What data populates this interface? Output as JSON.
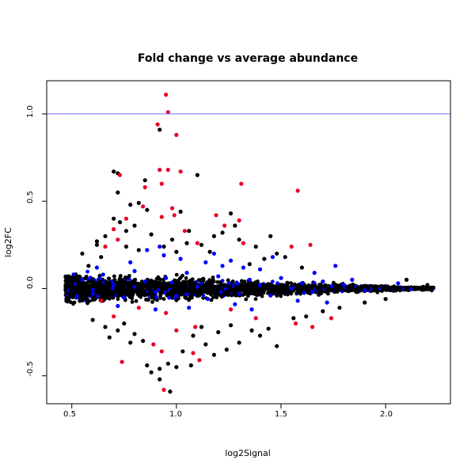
{
  "chart_data": {
    "type": "scatter",
    "title": "Fold change vs average abundance",
    "xlabel": "log2Signal",
    "ylabel": "log2FC",
    "xlim": [
      0.38,
      2.31
    ],
    "ylim": [
      -0.66,
      1.19
    ],
    "xticks": [
      "0.5",
      "1.0",
      "1.5",
      "2.0"
    ],
    "yticks": [
      "-0.5",
      "0.0",
      "0.5",
      "1.0"
    ],
    "hline": {
      "y": 1.0,
      "color": "#7070ff"
    },
    "grid": false,
    "legend": "none",
    "series": [
      {
        "color": "#000000",
        "points": [
          [
            0.7,
            0.67
          ],
          [
            0.72,
            0.66
          ],
          [
            0.85,
            0.62
          ],
          [
            0.92,
            0.91
          ],
          [
            1.1,
            0.65
          ],
          [
            0.72,
            0.55
          ],
          [
            0.78,
            0.48
          ],
          [
            0.82,
            0.49
          ],
          [
            0.7,
            0.4
          ],
          [
            0.73,
            0.38
          ],
          [
            0.86,
            0.45
          ],
          [
            1.02,
            0.44
          ],
          [
            1.26,
            0.43
          ],
          [
            1.28,
            0.36
          ],
          [
            1.22,
            0.32
          ],
          [
            1.18,
            0.3
          ],
          [
            1.38,
            0.24
          ],
          [
            1.3,
            0.28
          ],
          [
            0.82,
            0.22
          ],
          [
            1.05,
            0.26
          ],
          [
            1.12,
            0.25
          ],
          [
            0.66,
            0.3
          ],
          [
            0.62,
            0.27
          ],
          [
            0.55,
            0.2
          ],
          [
            0.76,
            0.33
          ],
          [
            0.8,
            0.36
          ],
          [
            0.94,
            0.24
          ],
          [
            1.0,
            0.21
          ],
          [
            1.48,
            0.2
          ],
          [
            1.52,
            0.18
          ],
          [
            1.42,
            0.17
          ],
          [
            1.6,
            0.12
          ],
          [
            1.35,
            0.14
          ],
          [
            0.58,
            0.13
          ],
          [
            0.64,
            0.18
          ],
          [
            0.86,
            -0.44
          ],
          [
            0.92,
            -0.46
          ],
          [
            0.96,
            -0.43
          ],
          [
            1.0,
            -0.45
          ],
          [
            1.07,
            -0.44
          ],
          [
            0.88,
            -0.48
          ],
          [
            0.97,
            -0.59
          ],
          [
            0.92,
            -0.52
          ],
          [
            0.84,
            -0.3
          ],
          [
            1.03,
            -0.36
          ],
          [
            1.14,
            -0.32
          ],
          [
            1.18,
            -0.38
          ],
          [
            1.24,
            -0.35
          ],
          [
            1.3,
            -0.31
          ],
          [
            1.36,
            -0.24
          ],
          [
            1.48,
            -0.33
          ],
          [
            1.44,
            -0.23
          ],
          [
            1.4,
            -0.27
          ],
          [
            0.68,
            -0.28
          ],
          [
            0.72,
            -0.24
          ],
          [
            0.78,
            -0.31
          ],
          [
            0.75,
            -0.2
          ],
          [
            0.6,
            -0.18
          ],
          [
            0.66,
            -0.22
          ],
          [
            0.8,
            -0.26
          ],
          [
            1.08,
            -0.27
          ],
          [
            1.12,
            -0.22
          ],
          [
            1.2,
            -0.25
          ],
          [
            1.26,
            -0.21
          ],
          [
            1.56,
            -0.17
          ],
          [
            1.62,
            -0.16
          ],
          [
            1.7,
            -0.13
          ],
          [
            1.78,
            -0.11
          ],
          [
            1.9,
            -0.08
          ],
          [
            2.0,
            -0.06
          ],
          [
            2.1,
            0.05
          ],
          [
            2.2,
            0.02
          ],
          [
            2.22,
            -0.01
          ],
          [
            0.62,
            0.25
          ],
          [
            0.76,
            0.24
          ],
          [
            0.88,
            0.31
          ],
          [
            0.98,
            0.28
          ],
          [
            1.06,
            0.33
          ],
          [
            1.16,
            0.21
          ],
          [
            1.45,
            0.3
          ]
        ]
      },
      {
        "color": "#0000ff",
        "points": [
          [
            0.55,
            0.05
          ],
          [
            0.6,
            -0.03
          ],
          [
            0.65,
            0.08
          ],
          [
            0.7,
            0.02
          ],
          [
            0.75,
            -0.05
          ],
          [
            0.8,
            0.1
          ],
          [
            0.85,
            0.04
          ],
          [
            0.9,
            -0.02
          ],
          [
            0.95,
            0.06
          ],
          [
            1.0,
            -0.04
          ],
          [
            1.05,
            0.09
          ],
          [
            1.1,
            0.01
          ],
          [
            1.15,
            -0.06
          ],
          [
            1.2,
            0.07
          ],
          [
            1.25,
            0.03
          ],
          [
            1.3,
            -0.03
          ],
          [
            1.35,
            0.05
          ],
          [
            1.4,
            0.02
          ],
          [
            1.45,
            -0.04
          ],
          [
            1.5,
            0.06
          ],
          [
            1.55,
            0.0
          ],
          [
            1.6,
            0.03
          ],
          [
            1.65,
            -0.02
          ],
          [
            1.7,
            0.04
          ],
          [
            1.8,
            0.02
          ],
          [
            1.9,
            -0.01
          ],
          [
            0.86,
            0.22
          ],
          [
            0.92,
            0.24
          ],
          [
            0.94,
            0.19
          ],
          [
            1.02,
            0.17
          ],
          [
            1.14,
            0.15
          ],
          [
            1.22,
            0.13
          ],
          [
            1.26,
            0.16
          ],
          [
            1.32,
            0.12
          ],
          [
            1.4,
            0.11
          ],
          [
            1.46,
            0.18
          ],
          [
            1.76,
            0.13
          ],
          [
            1.66,
            0.09
          ],
          [
            0.72,
            -0.1
          ],
          [
            0.9,
            -0.12
          ],
          [
            1.06,
            -0.11
          ],
          [
            1.28,
            -0.09
          ],
          [
            1.58,
            -0.07
          ],
          [
            1.84,
            0.05
          ],
          [
            2.06,
            0.03
          ],
          [
            0.62,
            0.12
          ],
          [
            0.78,
            0.15
          ],
          [
            1.18,
            0.2
          ],
          [
            1.36,
            -0.12
          ],
          [
            1.72,
            -0.08
          ]
        ]
      },
      {
        "color": "#e8002a",
        "points": [
          [
            0.95,
            1.11
          ],
          [
            0.96,
            1.01
          ],
          [
            0.91,
            0.94
          ],
          [
            1.0,
            0.88
          ],
          [
            0.96,
            0.68
          ],
          [
            1.02,
            0.67
          ],
          [
            0.92,
            0.68
          ],
          [
            0.73,
            0.65
          ],
          [
            0.85,
            0.58
          ],
          [
            0.93,
            0.6
          ],
          [
            1.31,
            0.6
          ],
          [
            1.58,
            0.56
          ],
          [
            0.98,
            0.46
          ],
          [
            0.99,
            0.42
          ],
          [
            0.93,
            0.41
          ],
          [
            0.84,
            0.47
          ],
          [
            0.76,
            0.4
          ],
          [
            1.19,
            0.42
          ],
          [
            1.23,
            0.36
          ],
          [
            1.3,
            0.39
          ],
          [
            1.04,
            0.33
          ],
          [
            0.7,
            0.34
          ],
          [
            0.66,
            0.24
          ],
          [
            0.72,
            0.28
          ],
          [
            1.1,
            0.26
          ],
          [
            1.32,
            0.26
          ],
          [
            1.64,
            0.25
          ],
          [
            1.55,
            0.24
          ],
          [
            0.64,
            -0.07
          ],
          [
            0.82,
            -0.11
          ],
          [
            0.95,
            -0.14
          ],
          [
            1.09,
            -0.22
          ],
          [
            0.74,
            -0.42
          ],
          [
            0.89,
            -0.32
          ],
          [
            0.93,
            -0.36
          ],
          [
            1.08,
            -0.37
          ],
          [
            1.11,
            -0.41
          ],
          [
            0.94,
            -0.58
          ],
          [
            1.38,
            -0.17
          ],
          [
            1.65,
            -0.22
          ],
          [
            1.74,
            -0.17
          ],
          [
            1.57,
            -0.2
          ],
          [
            1.0,
            -0.24
          ],
          [
            1.26,
            -0.12
          ],
          [
            0.7,
            -0.16
          ]
        ]
      }
    ]
  }
}
